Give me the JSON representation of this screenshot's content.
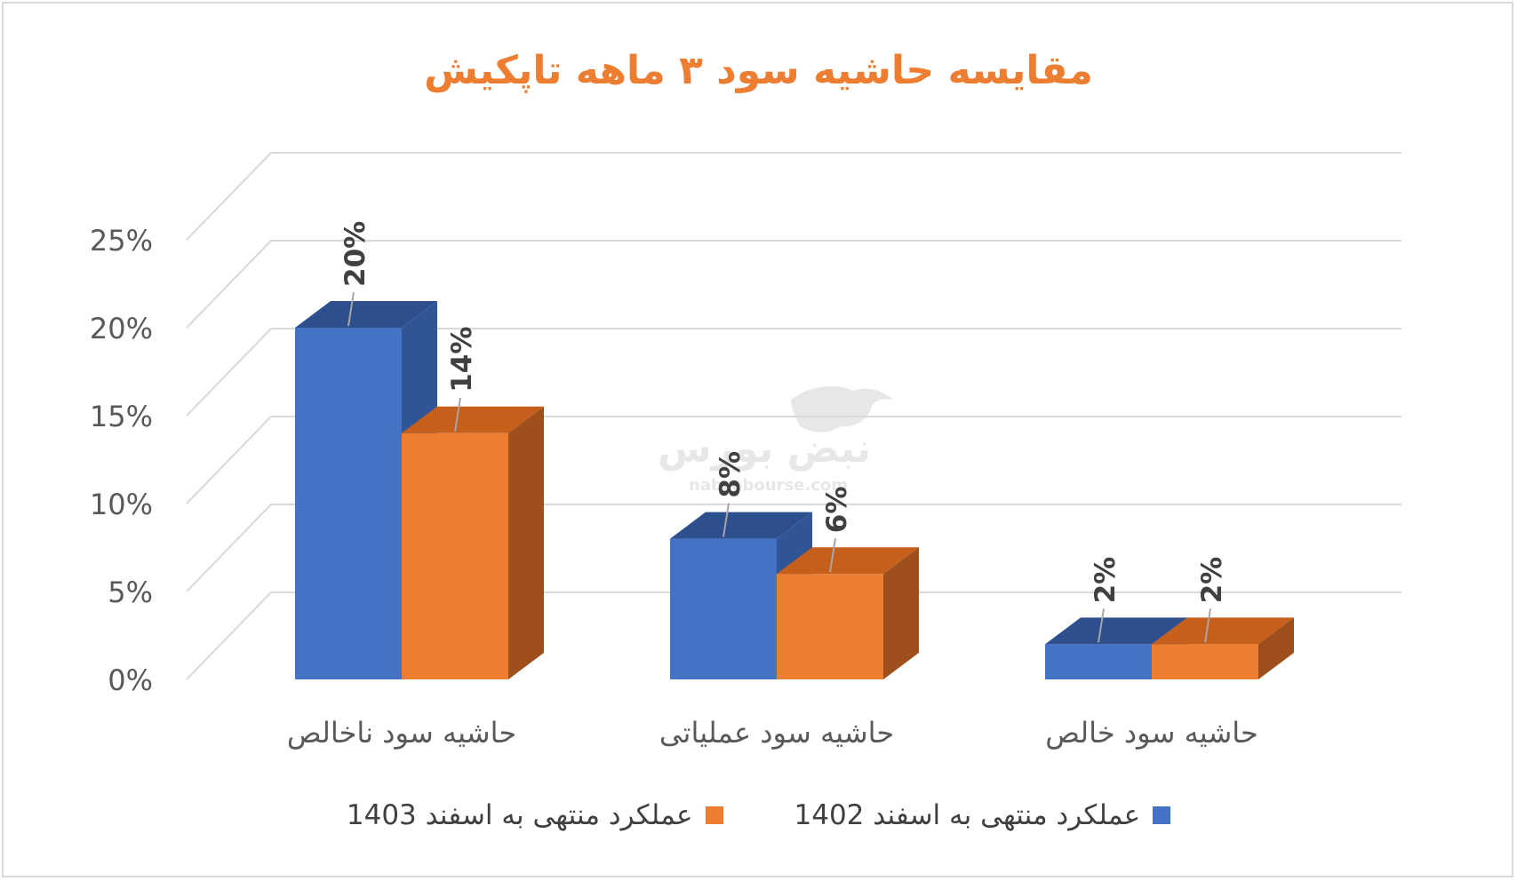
{
  "chart_data": {
    "type": "bar",
    "title": "مقایسه حاشیه سود ۳ ماهه تاپکیش",
    "categories": [
      "حاشیه سود ناخالص",
      "حاشیه سود عملیاتی",
      "حاشیه سود خالص"
    ],
    "series": [
      {
        "name": "عملکرد منتهی به اسفند 1402",
        "values": [
          20,
          8,
          2
        ],
        "data_labels": [
          "20%",
          "8%",
          "2%"
        ],
        "color": "#4472c4",
        "side_color": "#2f5597",
        "top_color": "#2e4f8e"
      },
      {
        "name": "عملکرد منتهی به اسفند 1403",
        "values": [
          14,
          6,
          2
        ],
        "data_labels": [
          "14%",
          "6%",
          "2%"
        ],
        "color": "#ed7d31",
        "side_color": "#9e4f1b",
        "top_color": "#c65f1c"
      }
    ],
    "y_ticks": [
      "0%",
      "5%",
      "10%",
      "15%",
      "20%",
      "25%"
    ],
    "ylim": [
      0,
      25
    ],
    "grid": true,
    "legend_position": "bottom",
    "three_d": true
  },
  "watermark": {
    "brand_text": "نبض بورس",
    "url_text": "nabzebourse.com",
    "icon": "bull-icon"
  },
  "colors": {
    "title": "#ed7d31",
    "axis_text": "#595959",
    "grid": "#d9d9d9",
    "data_label": "#404040"
  }
}
